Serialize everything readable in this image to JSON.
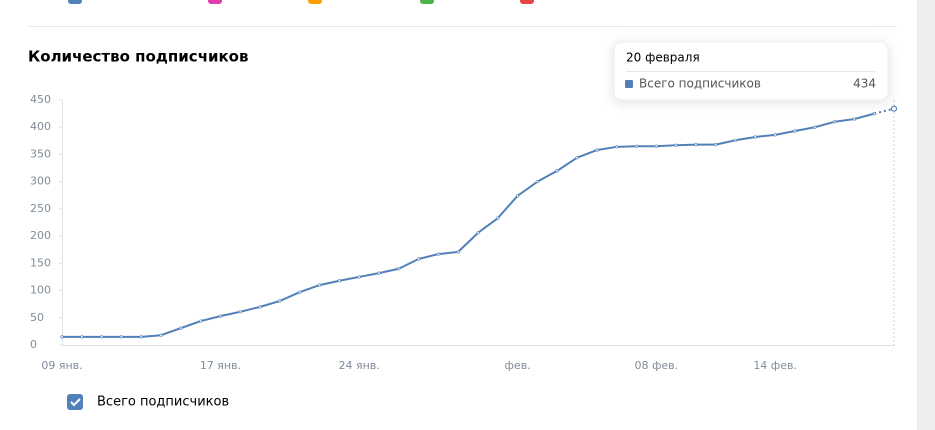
{
  "chart_data": {
    "type": "line",
    "title": "Количество подписчиков",
    "categories": [
      "09 янв.",
      null,
      null,
      null,
      null,
      null,
      null,
      null,
      "17 янв.",
      null,
      null,
      null,
      null,
      null,
      null,
      "24 янв.",
      null,
      null,
      null,
      null,
      null,
      null,
      null,
      "фев.",
      null,
      null,
      null,
      null,
      null,
      null,
      "08 фев.",
      null,
      null,
      null,
      null,
      null,
      "14 фев.",
      null,
      null,
      null,
      null,
      null,
      null
    ],
    "series": [
      {
        "name": "Всего подписчиков",
        "color": "#5181b8",
        "values": [
          15,
          15,
          15,
          15,
          15,
          18,
          31,
          44,
          53,
          61,
          70,
          81,
          97,
          110,
          118,
          125,
          132,
          140,
          158,
          167,
          171,
          206,
          233,
          274,
          300,
          320,
          344,
          358,
          364,
          365,
          365,
          367,
          368,
          368,
          376,
          382,
          386,
          393,
          400,
          410,
          415,
          425,
          434
        ]
      }
    ],
    "ylim": [
      0,
      450
    ],
    "yticks": [
      0,
      50,
      100,
      150,
      200,
      250,
      300,
      350,
      400,
      450
    ],
    "tooltip": {
      "title": "20 февраля"
    }
  }
}
